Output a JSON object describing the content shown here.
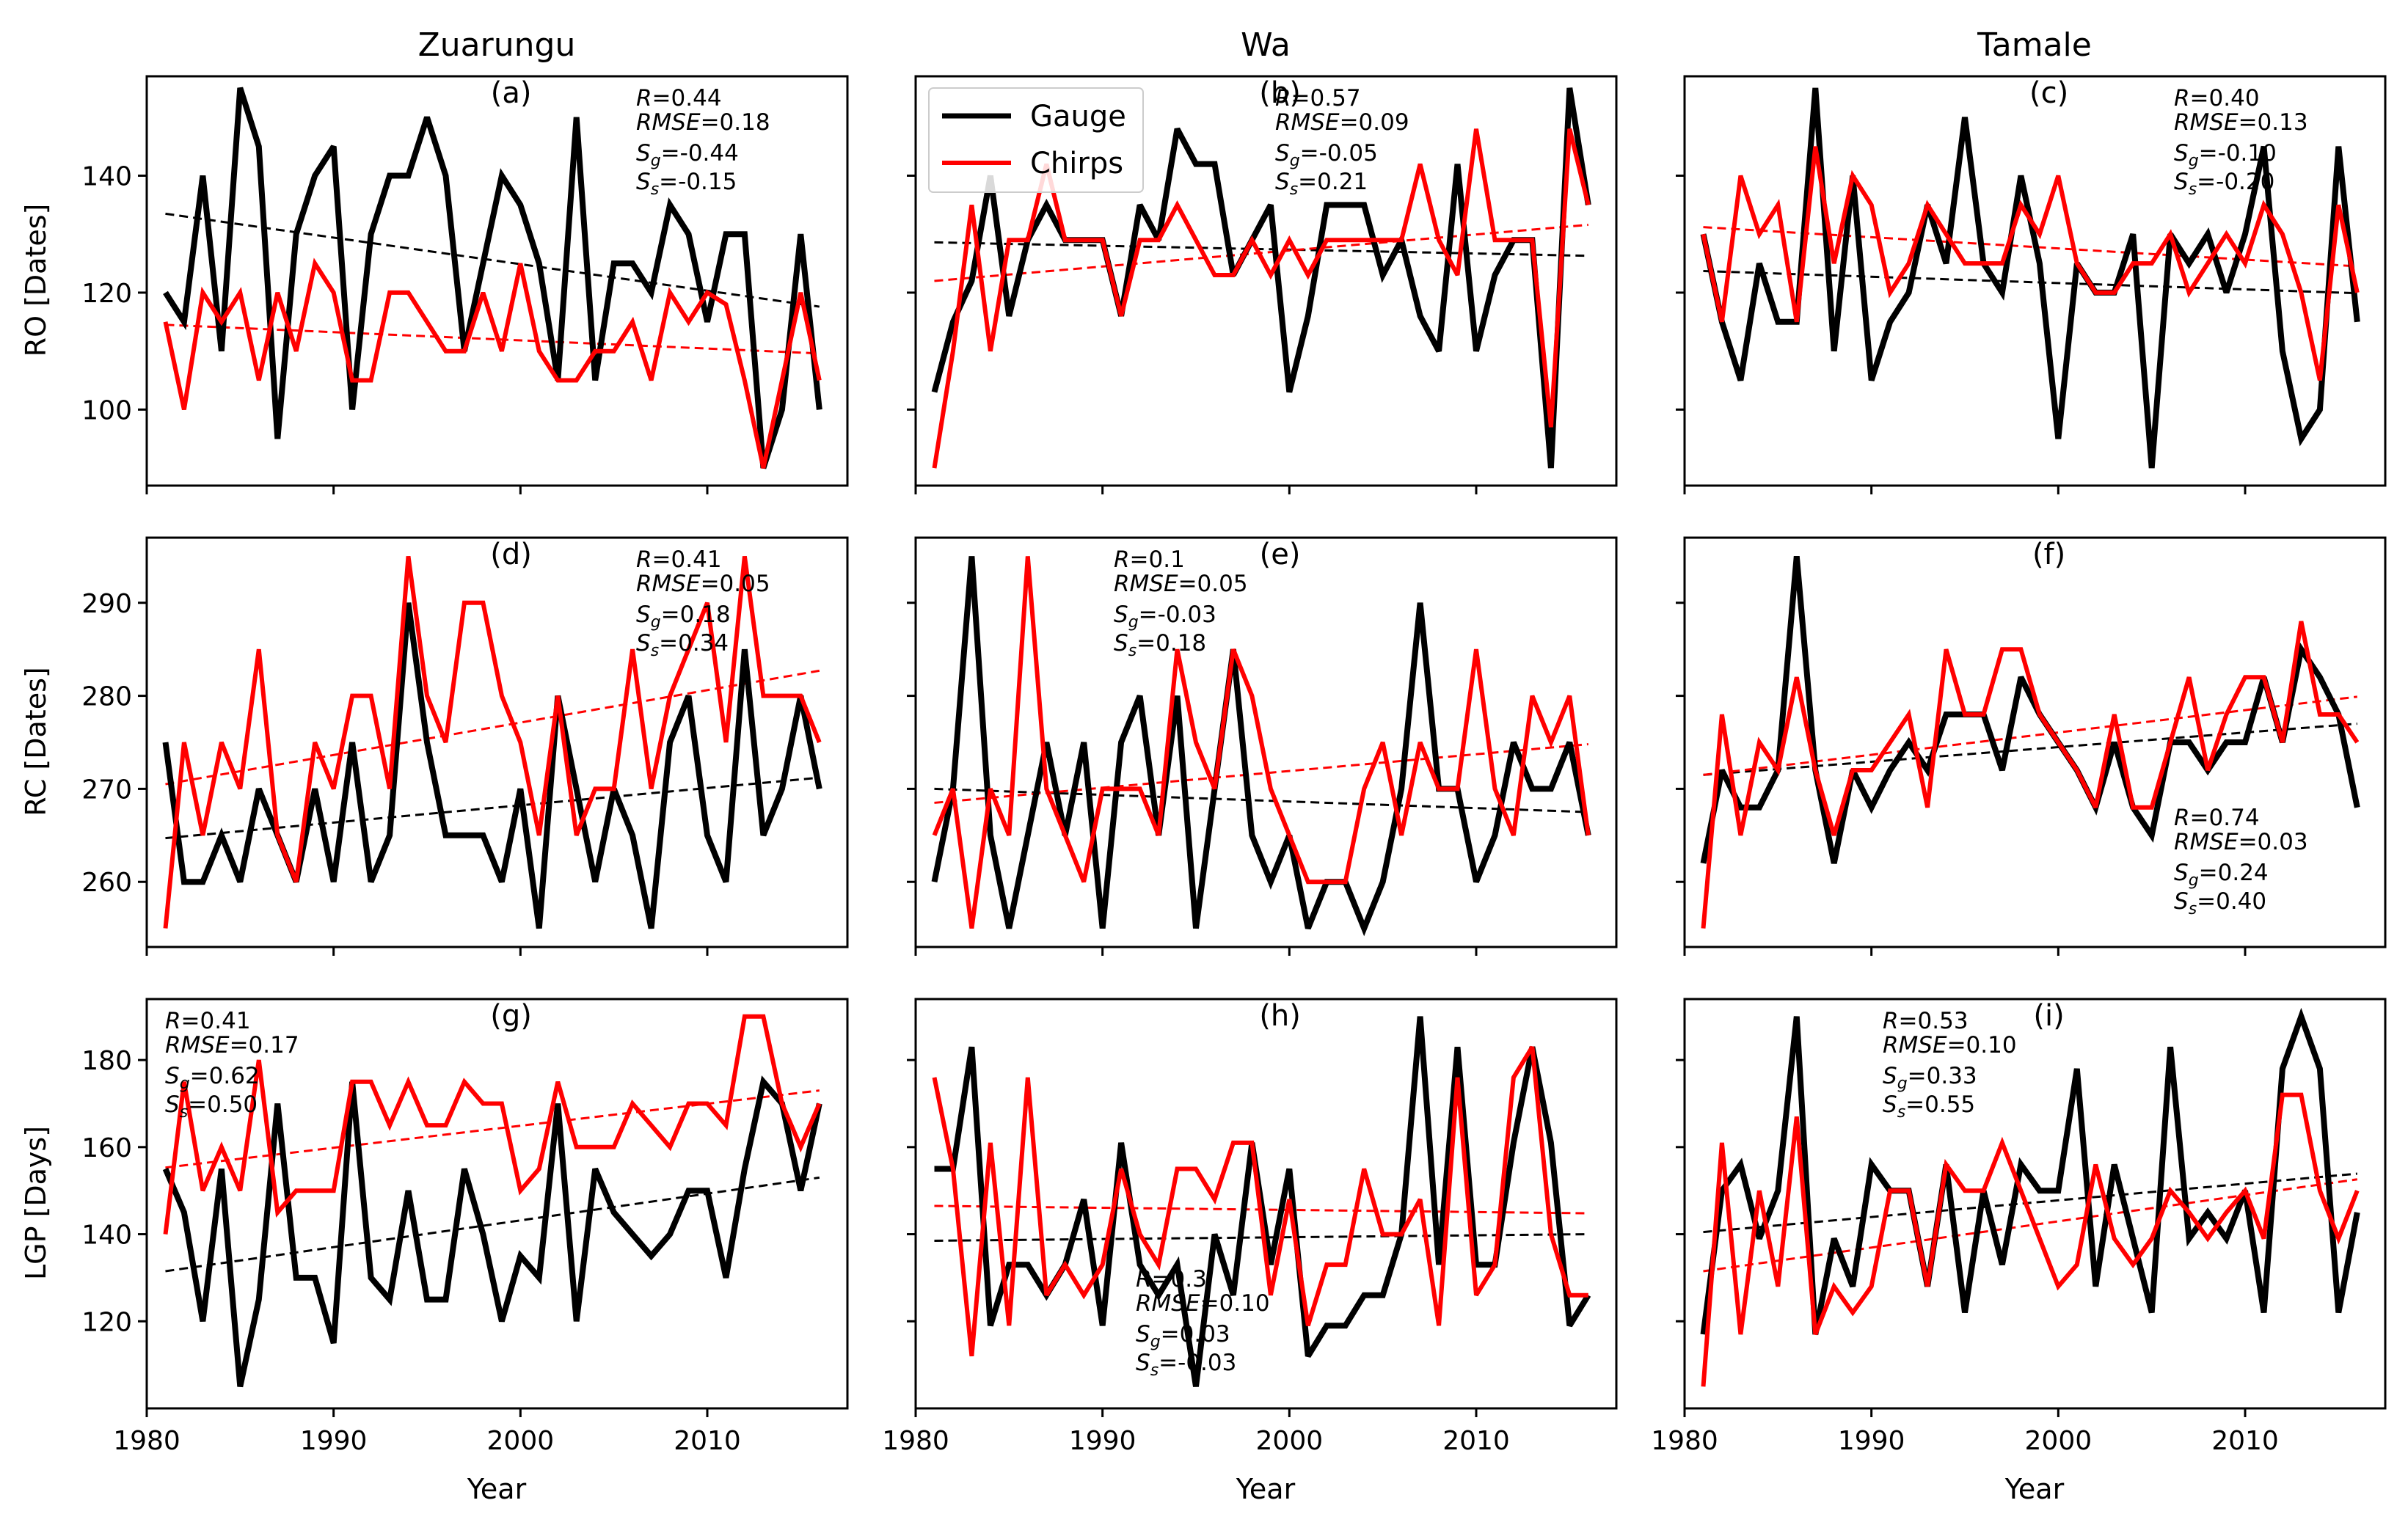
{
  "columns": [
    "Zuarungu",
    "Wa",
    "Tamale"
  ],
  "rows": [
    {
      "ylabel": "RO [Dates]"
    },
    {
      "ylabel": "RC [Dates]"
    },
    {
      "ylabel": "LGP [Days]"
    }
  ],
  "xlabel": "Year",
  "legend": {
    "gauge": "Gauge",
    "chirps": "Chirps"
  },
  "colors": {
    "gauge": "#000000",
    "chirps": "#ff0000"
  },
  "chart_data": {
    "type": "line",
    "x": [
      1981,
      1982,
      1983,
      1984,
      1985,
      1986,
      1987,
      1988,
      1989,
      1990,
      1991,
      1992,
      1993,
      1994,
      1995,
      1996,
      1997,
      1998,
      1999,
      2000,
      2001,
      2002,
      2003,
      2004,
      2005,
      2006,
      2007,
      2008,
      2009,
      2010,
      2011,
      2012,
      2013,
      2014,
      2015,
      2016
    ],
    "xticks": [
      1980,
      1990,
      2000,
      2010
    ],
    "xlim": [
      1980,
      2017.5
    ],
    "panels": [
      {
        "label": "(a)",
        "row": 0,
        "col": 0,
        "ylim": [
          87,
          157
        ],
        "yticks": [
          100,
          120,
          140
        ],
        "gauge": [
          120,
          115,
          140,
          110,
          155,
          145,
          95,
          130,
          140,
          145,
          100,
          130,
          140,
          140,
          150,
          140,
          110,
          125,
          140,
          135,
          125,
          105,
          150,
          105,
          125,
          125,
          120,
          135,
          130,
          115,
          130,
          130,
          90,
          100,
          130,
          100
        ],
        "chirps": [
          115,
          100,
          120,
          115,
          120,
          105,
          120,
          110,
          125,
          120,
          105,
          105,
          120,
          120,
          115,
          110,
          110,
          120,
          110,
          125,
          110,
          105,
          105,
          110,
          110,
          115,
          105,
          120,
          115,
          120,
          118,
          105,
          90,
          105,
          120,
          105
        ],
        "trend_gauge": [
          133.5,
          117.6
        ],
        "trend_chirps": [
          114.5,
          109.6
        ],
        "stats": [
          "R=0.44",
          "RMSE=0.18",
          "Sg=-0.44",
          "Ss=-0.15"
        ],
        "stats_pos": "top-right"
      },
      {
        "label": "(b)",
        "row": 0,
        "col": 1,
        "ylim": [
          87,
          157
        ],
        "yticks": [
          100,
          120,
          140
        ],
        "gauge": [
          103,
          115,
          122,
          140,
          116,
          129,
          135,
          129,
          129,
          129,
          116,
          135,
          129,
          148,
          142,
          142,
          123,
          129,
          135,
          103,
          116,
          135,
          135,
          135,
          123,
          129,
          116,
          110,
          142,
          110,
          123,
          129,
          129,
          90,
          155,
          135
        ],
        "chirps": [
          90,
          110,
          135,
          110,
          129,
          129,
          142,
          129,
          129,
          129,
          116,
          129,
          129,
          135,
          129,
          123,
          123,
          129,
          123,
          129,
          123,
          129,
          129,
          129,
          129,
          129,
          142,
          129,
          123,
          148,
          129,
          129,
          129,
          97,
          148,
          135
        ],
        "trend_gauge": [
          128.6,
          126.3
        ],
        "trend_chirps": [
          122.0,
          131.6
        ],
        "stats": [
          "R=0.57",
          "RMSE=0.09",
          "Sg=-0.05",
          "Ss=0.21"
        ],
        "stats_pos": "top-center"
      },
      {
        "label": "(c)",
        "row": 0,
        "col": 2,
        "ylim": [
          87,
          157
        ],
        "yticks": [
          100,
          120,
          140
        ],
        "gauge": [
          130,
          115,
          105,
          125,
          115,
          115,
          155,
          110,
          140,
          105,
          115,
          120,
          135,
          125,
          150,
          125,
          120,
          140,
          125,
          95,
          125,
          120,
          120,
          130,
          90,
          130,
          125,
          130,
          120,
          130,
          145,
          110,
          95,
          100,
          145,
          115
        ],
        "chirps": [
          130,
          115,
          140,
          130,
          135,
          115,
          145,
          125,
          140,
          135,
          120,
          125,
          135,
          130,
          125,
          125,
          125,
          135,
          130,
          140,
          125,
          120,
          120,
          125,
          125,
          130,
          120,
          125,
          130,
          125,
          135,
          130,
          120,
          105,
          135,
          120
        ],
        "trend_gauge": [
          123.7,
          119.9
        ],
        "trend_chirps": [
          131.2,
          124.5
        ],
        "stats": [
          "R=0.40",
          "RMSE=0.13",
          "Sg=-0.10",
          "Ss=-0.20"
        ],
        "stats_pos": "top-right"
      },
      {
        "label": "(d)",
        "row": 1,
        "col": 0,
        "ylim": [
          253,
          297
        ],
        "yticks": [
          260,
          270,
          280,
          290
        ],
        "gauge": [
          275,
          260,
          260,
          265,
          260,
          270,
          265,
          260,
          270,
          260,
          275,
          260,
          265,
          290,
          275,
          265,
          265,
          265,
          260,
          270,
          255,
          280,
          270,
          260,
          270,
          265,
          255,
          275,
          280,
          265,
          260,
          285,
          265,
          270,
          280,
          270
        ],
        "chirps": [
          255,
          275,
          265,
          275,
          270,
          285,
          265,
          260,
          275,
          270,
          280,
          280,
          270,
          295,
          280,
          275,
          290,
          290,
          280,
          275,
          265,
          280,
          265,
          270,
          270,
          285,
          270,
          280,
          285,
          290,
          275,
          295,
          280,
          280,
          280,
          275
        ],
        "trend_gauge": [
          264.7,
          271.2
        ],
        "trend_chirps": [
          270.5,
          282.7
        ],
        "stats": [
          "R=0.41",
          "RMSE=0.05",
          "Sg=0.18",
          "Ss=0.34"
        ],
        "stats_pos": "top-right"
      },
      {
        "label": "(e)",
        "row": 1,
        "col": 1,
        "ylim": [
          253,
          297
        ],
        "yticks": [
          260,
          270,
          280,
          290
        ],
        "gauge": [
          260,
          270,
          295,
          265,
          255,
          265,
          275,
          265,
          275,
          255,
          275,
          280,
          265,
          280,
          255,
          270,
          285,
          265,
          260,
          265,
          255,
          260,
          260,
          255,
          260,
          270,
          290,
          270,
          270,
          260,
          265,
          275,
          270,
          270,
          275,
          265
        ],
        "chirps": [
          265,
          270,
          255,
          270,
          265,
          295,
          270,
          265,
          260,
          270,
          270,
          270,
          265,
          285,
          275,
          270,
          285,
          280,
          270,
          265,
          260,
          260,
          260,
          270,
          275,
          265,
          275,
          270,
          270,
          285,
          270,
          265,
          280,
          275,
          280,
          265
        ],
        "trend_gauge": [
          270.0,
          267.5
        ],
        "trend_chirps": [
          268.5,
          274.8
        ],
        "stats": [
          "R=0.1",
          "RMSE=0.05",
          "Sg=-0.03",
          "Ss=0.18"
        ],
        "stats_pos": "top-left-center"
      },
      {
        "label": "(f)",
        "row": 1,
        "col": 2,
        "ylim": [
          253,
          297
        ],
        "yticks": [
          260,
          270,
          280,
          290
        ],
        "gauge": [
          262,
          272,
          268,
          268,
          272,
          295,
          272,
          262,
          272,
          268,
          272,
          275,
          272,
          278,
          278,
          278,
          272,
          282,
          278,
          275,
          272,
          268,
          275,
          268,
          265,
          275,
          275,
          272,
          275,
          275,
          282,
          275,
          285,
          282,
          278,
          268
        ],
        "chirps": [
          255,
          278,
          265,
          275,
          272,
          282,
          272,
          265,
          272,
          272,
          275,
          278,
          268,
          285,
          278,
          278,
          285,
          285,
          278,
          275,
          272,
          268,
          278,
          268,
          268,
          275,
          282,
          272,
          278,
          282,
          282,
          275,
          288,
          278,
          278,
          275
        ],
        "trend_gauge": [
          271.5,
          277.0
        ],
        "trend_chirps": [
          271.5,
          279.9
        ],
        "stats": [
          "R=0.74",
          "RMSE=0.03",
          "Sg=0.24",
          "Ss=0.40"
        ],
        "stats_pos": "bottom-right"
      },
      {
        "label": "(g)",
        "row": 2,
        "col": 0,
        "ylim": [
          100,
          194
        ],
        "yticks": [
          120,
          140,
          160,
          180
        ],
        "gauge": [
          155,
          145,
          120,
          155,
          105,
          125,
          170,
          130,
          130,
          115,
          175,
          130,
          125,
          150,
          125,
          125,
          155,
          140,
          120,
          135,
          130,
          170,
          120,
          155,
          145,
          140,
          135,
          140,
          150,
          150,
          130,
          155,
          175,
          170,
          150,
          170
        ],
        "chirps": [
          140,
          175,
          150,
          160,
          150,
          180,
          145,
          150,
          150,
          150,
          175,
          175,
          165,
          175,
          165,
          165,
          175,
          170,
          170,
          150,
          155,
          175,
          160,
          160,
          160,
          170,
          165,
          160,
          170,
          170,
          165,
          190,
          190,
          170,
          160,
          170
        ],
        "trend_gauge": [
          131.5,
          153.0
        ],
        "trend_chirps": [
          155.3,
          173.0
        ],
        "stats": [
          "R=0.41",
          "RMSE=0.17",
          "Sg=0.62",
          "Ss=0.50"
        ],
        "stats_pos": "top-left"
      },
      {
        "label": "(h)",
        "row": 2,
        "col": 1,
        "ylim": [
          100,
          194
        ],
        "yticks": [
          120,
          140,
          160,
          180
        ],
        "gauge": [
          155,
          155,
          183,
          119,
          133,
          133,
          126,
          133,
          148,
          119,
          161,
          133,
          126,
          133,
          105,
          140,
          126,
          161,
          133,
          155,
          112,
          119,
          119,
          126,
          126,
          140,
          190,
          133,
          183,
          133,
          133,
          161,
          183,
          161,
          119,
          126
        ],
        "chirps": [
          176,
          155,
          112,
          161,
          119,
          176,
          126,
          133,
          126,
          133,
          155,
          140,
          133,
          155,
          155,
          148,
          161,
          161,
          126,
          148,
          119,
          133,
          133,
          155,
          140,
          140,
          148,
          119,
          176,
          126,
          133,
          176,
          183,
          140,
          126,
          126
        ],
        "trend_gauge": [
          138.5,
          140.0
        ],
        "trend_chirps": [
          146.5,
          144.8
        ],
        "stats": [
          "R=0.3",
          "RMSE=0.10",
          "Sg=0.03",
          "Ss=-0.03"
        ],
        "stats_pos": "bottom-center"
      },
      {
        "label": "(i)",
        "row": 2,
        "col": 2,
        "ylim": [
          100,
          194
        ],
        "yticks": [
          120,
          140,
          160,
          180
        ],
        "gauge": [
          117,
          150,
          156,
          139,
          150,
          190,
          117,
          139,
          128,
          156,
          150,
          150,
          128,
          156,
          122,
          150,
          133,
          156,
          150,
          150,
          178,
          128,
          156,
          139,
          122,
          183,
          139,
          145,
          139,
          150,
          122,
          178,
          190,
          178,
          122,
          145
        ],
        "chirps": [
          105,
          161,
          117,
          150,
          128,
          167,
          117,
          128,
          122,
          128,
          150,
          150,
          128,
          156,
          150,
          150,
          161,
          150,
          139,
          128,
          133,
          156,
          139,
          133,
          139,
          150,
          145,
          139,
          145,
          150,
          139,
          172,
          172,
          150,
          139,
          150
        ],
        "trend_gauge": [
          140.5,
          153.9
        ],
        "trend_chirps": [
          131.5,
          152.6
        ],
        "stats": [
          "R=0.53",
          "RMSE=0.10",
          "Sg=0.33",
          "Ss=0.55"
        ],
        "stats_pos": "top-left-center"
      }
    ]
  }
}
